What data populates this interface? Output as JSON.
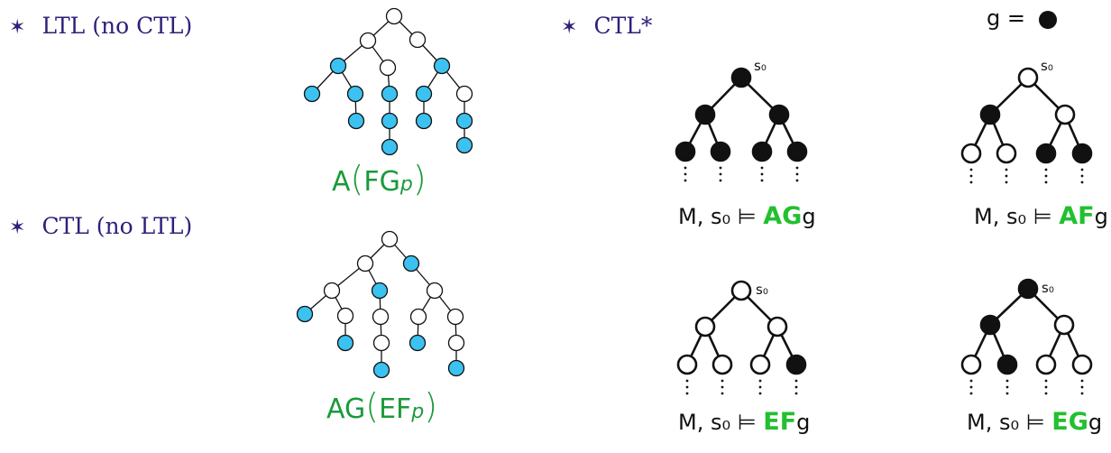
{
  "bullets": {
    "ltl": "LTL (no CTL)",
    "ctl": "CTL (no LTL)",
    "ctlstar": "CTL*"
  },
  "bullet_symbol": "✶",
  "formulas": {
    "ltl": {
      "prefix": "A",
      "open": "(",
      "body": "FG",
      "var": "p",
      "close": ")"
    },
    "ctl": {
      "prefix": "AG",
      "open": "(",
      "body": "EF",
      "var": "p",
      "close": ")"
    }
  },
  "legend": {
    "text": "g ="
  },
  "sketches": [
    {
      "label_left": "M, s₀ ⊨",
      "op": "AG",
      "var": "g"
    },
    {
      "label_left": "M, s₀ ⊨",
      "op": "AF",
      "var": "g"
    },
    {
      "label_left": "M, s₀ ⊨",
      "op": "EF",
      "var": "g"
    },
    {
      "label_left": "M, s₀ ⊨",
      "op": "EG",
      "var": "g"
    }
  ],
  "root_label": "s₀",
  "colors": {
    "bullet_text": "#2e1f7a",
    "formula_green": "#1a9a3a",
    "op_green": "#22c02f",
    "filled_blue": "#3cc2f0",
    "filled_black": "#111111"
  }
}
